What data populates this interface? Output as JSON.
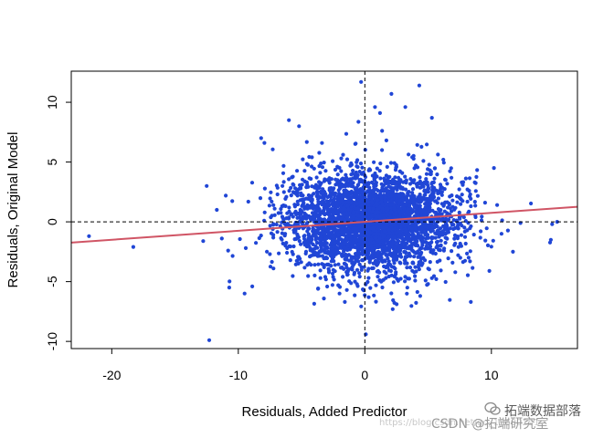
{
  "chart_data": {
    "type": "scatter",
    "title": "",
    "xlabel": "Residuals, Added Predictor",
    "ylabel": "Residuals, Original Model",
    "xlim": [
      -23.2,
      16.8
    ],
    "ylim": [
      -10.6,
      12.6
    ],
    "x_ticks": [
      -20,
      -10,
      0,
      10
    ],
    "y_ticks": [
      -10,
      -5,
      0,
      5,
      10
    ],
    "grid": false,
    "legend": "none",
    "point_color": "#2046d6",
    "cluster": {
      "n": 3600,
      "x_mean": 0.5,
      "x_sd": 3.3,
      "y_sd": 1.9
    },
    "extreme_points": [
      {
        "x": -21.8,
        "y": -1.2
      },
      {
        "x": -18.3,
        "y": -2.1
      },
      {
        "x": -12.5,
        "y": 3.0
      },
      {
        "x": -12.3,
        "y": -9.9
      },
      {
        "x": -11.7,
        "y": 1.0
      },
      {
        "x": -11.3,
        "y": -1.4
      },
      {
        "x": -10.8,
        "y": -2.4
      },
      {
        "x": -9.5,
        "y": -6.0
      },
      {
        "x": -8.9,
        "y": -5.4
      },
      {
        "x": -8.2,
        "y": 7.0
      },
      {
        "x": -6.0,
        "y": 8.5
      },
      {
        "x": -5.2,
        "y": 8.0
      },
      {
        "x": -3.7,
        "y": -5.6
      },
      {
        "x": -2.0,
        "y": -6.0
      },
      {
        "x": -0.3,
        "y": 11.7
      },
      {
        "x": 0.3,
        "y": -6.3
      },
      {
        "x": 0.8,
        "y": 9.6
      },
      {
        "x": 1.2,
        "y": 9.1
      },
      {
        "x": 2.1,
        "y": 10.7
      },
      {
        "x": 3.2,
        "y": 9.6
      },
      {
        "x": 4.3,
        "y": 11.4
      },
      {
        "x": 5.3,
        "y": 8.7
      },
      {
        "x": 6.2,
        "y": 5.2
      },
      {
        "x": 7.4,
        "y": -2.1
      },
      {
        "x": 8.2,
        "y": -3.0
      },
      {
        "x": 9.5,
        "y": 1.6
      },
      {
        "x": 10.2,
        "y": 4.5
      },
      {
        "x": 10.8,
        "y": -1.0
      },
      {
        "x": 11.7,
        "y": -2.5
      },
      {
        "x": 12.3,
        "y": -0.1
      },
      {
        "x": 14.7,
        "y": -1.5
      },
      {
        "x": 14.8,
        "y": -0.2
      },
      {
        "x": 15.2,
        "y": 0.0
      }
    ],
    "regression_line": {
      "intercept": 0.0,
      "slope": 0.075,
      "color": "#d05565"
    },
    "reference_lines": {
      "h": 0,
      "v": 0,
      "style": "dashed"
    }
  },
  "watermark": {
    "top": "拓端数据部落",
    "bottom": "CSDN @拓端研究室",
    "url": "https://blog.csdn.net/qq_19600291"
  }
}
